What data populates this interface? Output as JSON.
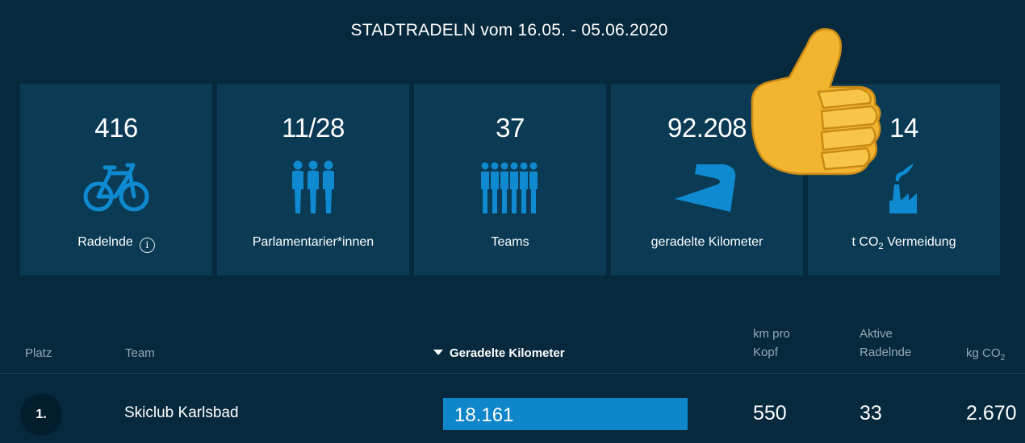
{
  "header": {
    "title": "STADTRADELN vom 16.05. - 05.06.2020"
  },
  "stats": [
    {
      "value": "416",
      "label": "Radelnde",
      "icon": "bicycle-icon"
    },
    {
      "value": "11/28",
      "label": "Parlamentarier*innen",
      "icon": "people-group-icon"
    },
    {
      "value": "37",
      "label": "Teams",
      "icon": "crowd-icon"
    },
    {
      "value": "92.208",
      "label": "geradelte Kilometer",
      "icon": "road-icon"
    },
    {
      "value": "14",
      "label_prefix": "t CO",
      "label_sub": "2",
      "label_suffix": " Vermeidung",
      "icon": "factory-icon"
    }
  ],
  "overlay": {
    "icon": "thumbs-up-icon"
  },
  "table": {
    "columns": {
      "rank": "Platz",
      "team": "Team",
      "km": "Geradelte Kilometer",
      "km_per_head_line1": "km pro",
      "km_per_head_line2": "Kopf",
      "active_line1": "Aktive",
      "active_line2": "Radelnde",
      "co2_prefix": "kg CO",
      "co2_sub": "2"
    },
    "sort": {
      "column": "km",
      "direction": "descending"
    },
    "rows": [
      {
        "rank": "1.",
        "team": "Skiclub Karlsbad",
        "km": "18.161",
        "km_bar_fraction": 1.0,
        "km_per_head": "550",
        "active": "33",
        "co2": "2.670"
      }
    ]
  },
  "colors": {
    "background": "#06293d",
    "card": "#0a3a54",
    "accent_blue": "#0f86c9",
    "thumb_yellow": "#f5bd2f"
  }
}
